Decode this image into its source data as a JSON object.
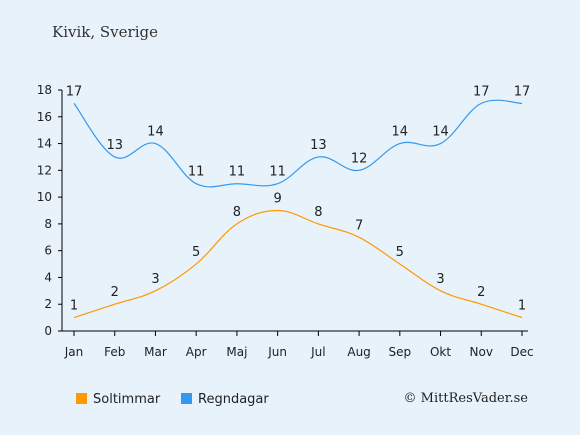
{
  "chart_data": {
    "type": "line",
    "title": "Kivik, Sverige",
    "categories": [
      "Jan",
      "Feb",
      "Mar",
      "Apr",
      "Maj",
      "Jun",
      "Jul",
      "Aug",
      "Sep",
      "Okt",
      "Nov",
      "Dec"
    ],
    "series": [
      {
        "name": "Soltimmar",
        "color": "#ff9900",
        "values": [
          1,
          2,
          3,
          5,
          8,
          9,
          8,
          7,
          5,
          3,
          2,
          1
        ]
      },
      {
        "name": "Regndagar",
        "color": "#3399ee",
        "values": [
          17,
          13,
          14,
          11,
          11,
          11,
          13,
          12,
          14,
          14,
          17,
          17
        ]
      }
    ],
    "yticks": [
      0,
      2,
      4,
      6,
      8,
      10,
      12,
      14,
      16,
      18
    ],
    "ylim": [
      0,
      18
    ],
    "grid": false,
    "legend": "bottom-left",
    "credit": "© MittResVader.se"
  }
}
